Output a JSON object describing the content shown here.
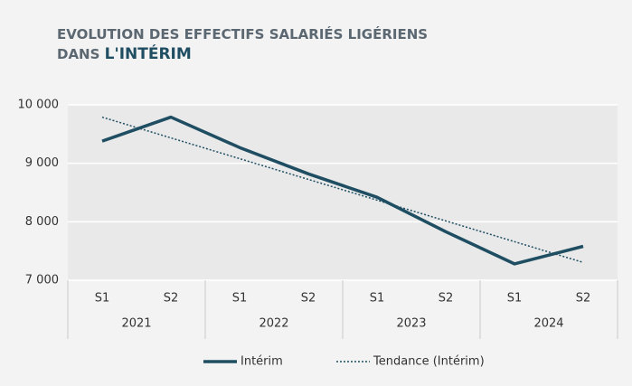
{
  "chart_data": {
    "type": "line",
    "title_line1": "EVOLUTION DES EFFECTIFS SALARIÉS LIGÉRIENS",
    "title_line2_prefix": "DANS",
    "title_line2_bold": "L'INTÉRIM",
    "categories": [
      "S1",
      "S2",
      "S1",
      "S2",
      "S1",
      "S2",
      "S1",
      "S2"
    ],
    "group_labels": [
      "2021",
      "2022",
      "2023",
      "2024"
    ],
    "series": [
      {
        "name": "Intérim",
        "color": "#1f4e63",
        "style": "solid",
        "values": [
          9380,
          9790,
          9270,
          8820,
          8420,
          7830,
          7280,
          7580
        ]
      },
      {
        "name": "Tendance (Intérim)",
        "color": "#1f4e63",
        "style": "dotted",
        "values": [
          9790,
          9435,
          9080,
          8725,
          8370,
          8015,
          7660,
          7305
        ]
      }
    ],
    "ylim": [
      7000,
      10000
    ],
    "yticks": [
      {
        "value": 7000,
        "label": "7 000"
      },
      {
        "value": 8000,
        "label": "8 000"
      },
      {
        "value": 9000,
        "label": "9 000"
      },
      {
        "value": 10000,
        "label": "10 000"
      }
    ],
    "grid": true
  }
}
